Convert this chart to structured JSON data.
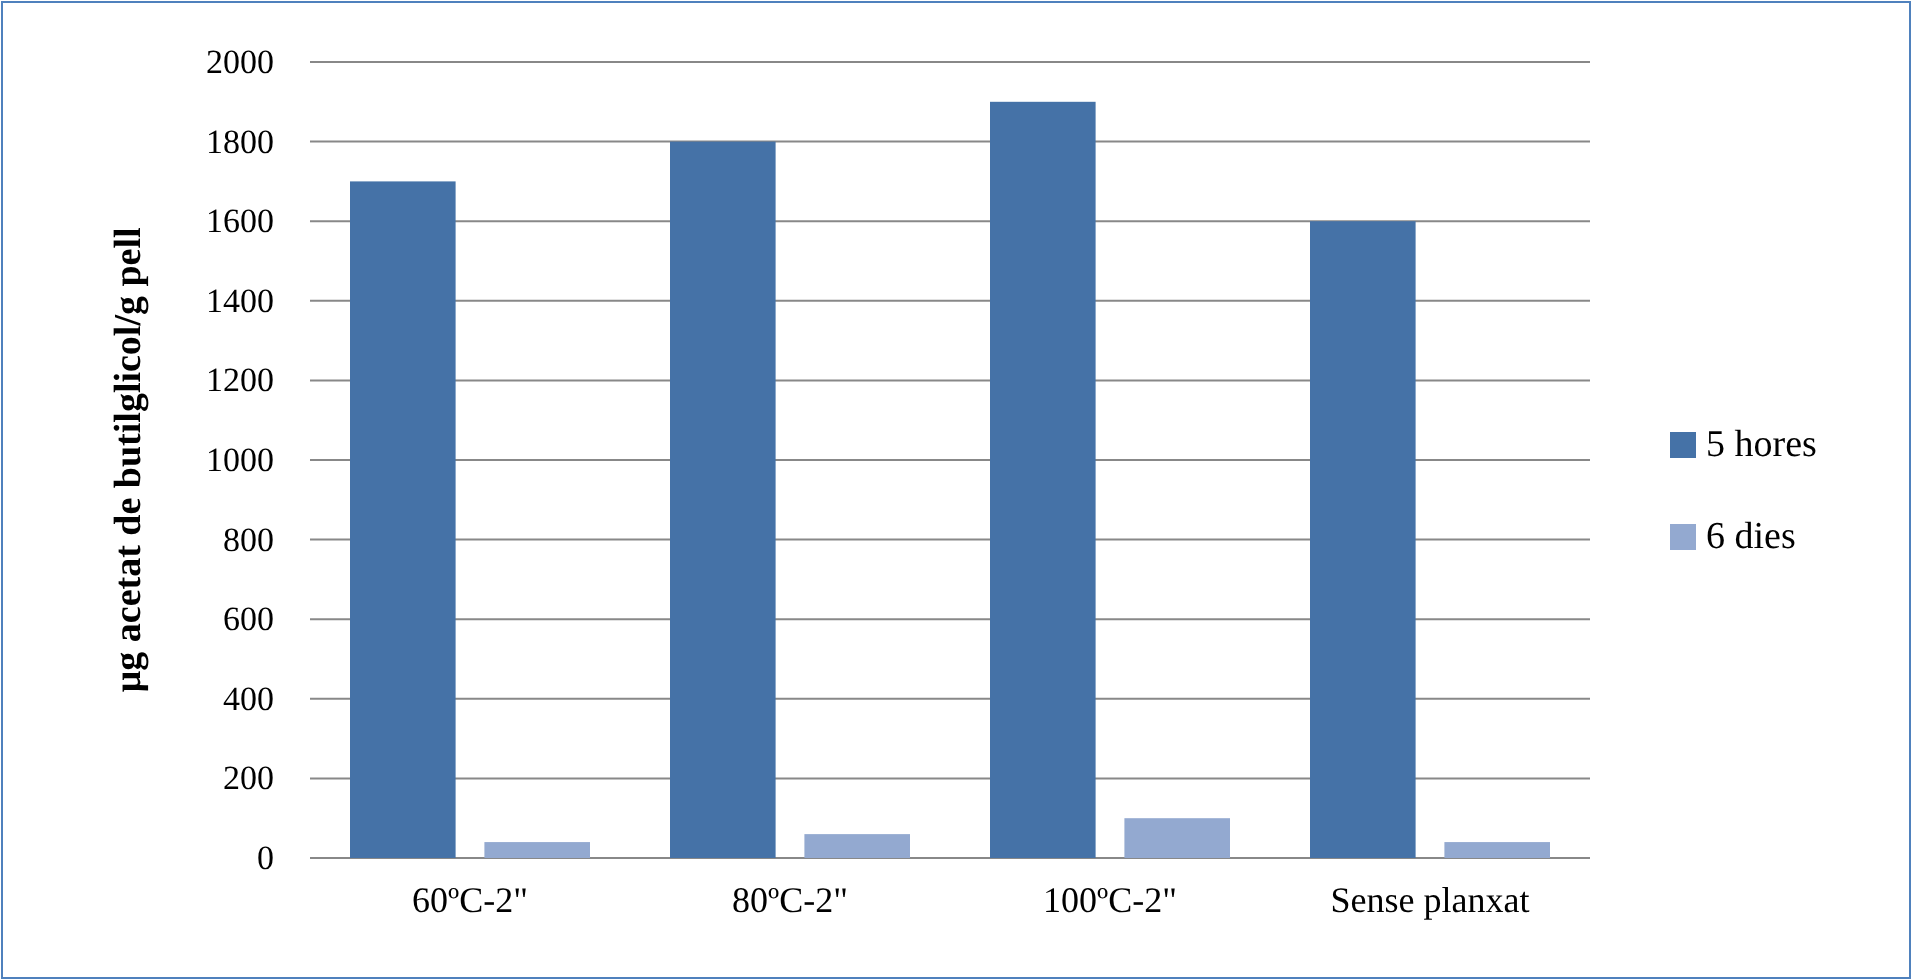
{
  "chart_data": {
    "type": "bar",
    "ylabel": "µg acetat de butilglicol/g pell",
    "categories": [
      "60ºC-2\"",
      "80ºC-2\"",
      "100ºC-2\"",
      "Sense planxat"
    ],
    "series": [
      {
        "name": "5 hores",
        "color": "#4572a7",
        "values": [
          1700,
          1800,
          1900,
          1600
        ]
      },
      {
        "name": "6 dies",
        "color": "#93a9d0",
        "values": [
          40,
          60,
          100,
          40
        ]
      }
    ],
    "ylim": [
      0,
      2000
    ],
    "yticks": [
      0,
      200,
      400,
      600,
      800,
      1000,
      1200,
      1400,
      1600,
      1800,
      2000
    ],
    "grid": "y",
    "legend": "right"
  }
}
